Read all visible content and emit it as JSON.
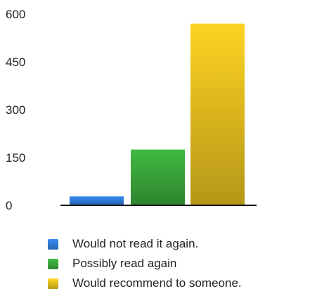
{
  "chart_data": {
    "type": "bar",
    "categories": [
      "Would not read it again.",
      "Possibly read again",
      "Would recommend to someone."
    ],
    "values": [
      28,
      175,
      570
    ],
    "colors": [
      "#2f7ad6",
      "#3aa53a",
      "#e2bc1e"
    ],
    "ylim": [
      0,
      600
    ],
    "yticks": [
      0,
      150,
      300,
      450,
      600
    ],
    "grid": false,
    "legend_position": "bottom"
  }
}
